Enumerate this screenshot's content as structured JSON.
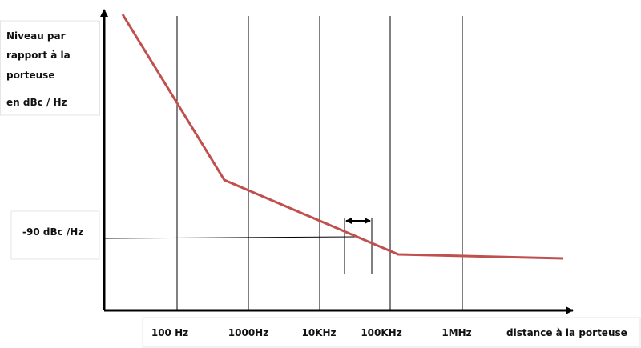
{
  "y_axis_label": {
    "lines": [
      "Niveau par",
      "rapport à la",
      "porteuse"
    ],
    "unit": "en dBc / Hz"
  },
  "reference_label": "-90 dBc /Hz",
  "x_labels": [
    "100 Hz",
    "1000Hz",
    "10KHz",
    "100KHz",
    "1MHz"
  ],
  "x_axis_label": "distance à la porteuse"
}
